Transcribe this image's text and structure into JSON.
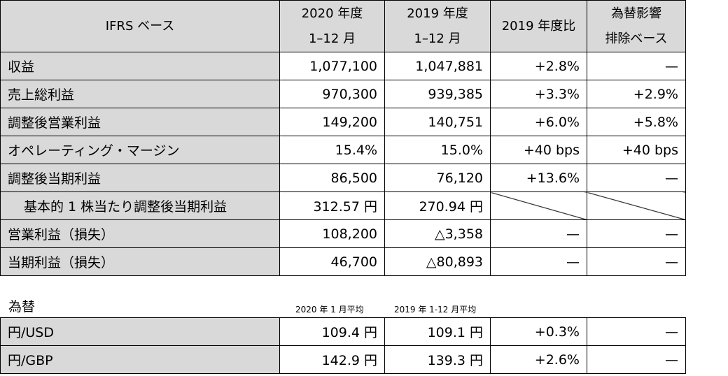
{
  "header": {
    "label": "IFRS ベース",
    "col1_line1": "2020 年度",
    "col1_line2": "1–12 月",
    "col2_line1": "2019 年度",
    "col2_line2": "1–12 月",
    "col3": "2019 年度比",
    "col4_line1": "為替影響",
    "col4_line2": "排除ベース"
  },
  "rows": [
    {
      "label": "収益",
      "v2020": "1,077,100",
      "v2019": "1,047,881",
      "yoy": "+2.8%",
      "fx": "—"
    },
    {
      "label": "売上総利益",
      "v2020": "970,300",
      "v2019": "939,385",
      "yoy": "+3.3%",
      "fx": "+2.9%"
    },
    {
      "label": "調整後営業利益",
      "v2020": "149,200",
      "v2019": "140,751",
      "yoy": "+6.0%",
      "fx": "+5.8%"
    },
    {
      "label": "オペレーティング・マージン",
      "v2020": "15.4%",
      "v2019": "15.0%",
      "yoy": "+40 bps",
      "fx": "+40 bps"
    },
    {
      "label": "調整後当期利益",
      "v2020": "86,500",
      "v2019": "76,120",
      "yoy": "+13.6%",
      "fx": "—"
    },
    {
      "label": "基本的 1 株当たり調整後当期利益",
      "v2020": "312.57 円",
      "v2019": "270.94 円"
    },
    {
      "label": "営業利益（損失）",
      "v2020": "108,200",
      "v2019": "△3,358",
      "yoy": "—",
      "fx": "—"
    },
    {
      "label": "当期利益（損失）",
      "v2020": "46,700",
      "v2019": "△80,893",
      "yoy": "—",
      "fx": "—"
    }
  ],
  "fx_section": {
    "title": "為替",
    "note_2020": "2020 年 1 月平均",
    "note_2019": "2019 年 1-12 月平均",
    "rows": [
      {
        "label": "円/USD",
        "v2020": "109.4 円",
        "v2019": "109.1 円",
        "yoy": "+0.3%",
        "fx": "—"
      },
      {
        "label": "円/GBP",
        "v2020": "142.9 円",
        "v2019": "139.3 円",
        "yoy": "+2.6%",
        "fx": "—"
      }
    ]
  }
}
